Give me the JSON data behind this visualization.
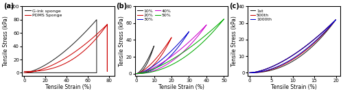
{
  "fig_width": 5.0,
  "fig_height": 1.36,
  "dpi": 100,
  "background_color": "#ffffff",
  "panel_a": {
    "label": "(a)",
    "xlabel": "Tensile Strain (%)",
    "ylabel": "Tensile Stress (kPa)",
    "xlim": [
      -2,
      85
    ],
    "ylim": [
      -5,
      100
    ],
    "xticks": [
      0,
      20,
      40,
      60,
      80
    ],
    "yticks": [
      0,
      20,
      40,
      60,
      80,
      100
    ],
    "legend": [
      "G-ink sponge",
      "PDMS Sponge"
    ],
    "legend_colors": [
      "#222222",
      "#cc0000"
    ]
  },
  "panel_b": {
    "label": "(b)",
    "xlabel": "Tensile Strain (%)",
    "ylabel": "Tensile Stress (kPa)",
    "xlim": [
      -1,
      52
    ],
    "ylim": [
      -3,
      80
    ],
    "xticks": [
      0,
      10,
      20,
      30,
      40,
      50
    ],
    "yticks": [
      0,
      20,
      40,
      60,
      80
    ],
    "legend": [
      "10%",
      "20%",
      "30%",
      "40%",
      "50%"
    ],
    "legend_colors": [
      "#222222",
      "#cc0000",
      "#0000cc",
      "#cc00cc",
      "#00aa00"
    ],
    "max_strains": [
      10,
      20,
      30,
      40,
      50
    ]
  },
  "panel_c": {
    "label": "(c)",
    "xlabel": "Tensile Strain (%)",
    "ylabel": "Tensile Stress (kPa)",
    "xlim": [
      -0.5,
      21
    ],
    "ylim": [
      -2,
      40
    ],
    "xticks": [
      0,
      5,
      10,
      15,
      20
    ],
    "yticks": [
      0,
      10,
      20,
      30,
      40
    ],
    "legend": [
      "1st",
      "500th",
      "1000th"
    ],
    "legend_colors": [
      "#222222",
      "#cc0000",
      "#0000cc"
    ],
    "max_strain": 20,
    "max_stress": 32
  },
  "font_size_label": 5.5,
  "font_size_tick": 5.0,
  "font_size_legend": 4.5,
  "font_size_panel": 7.0,
  "line_width": 0.75
}
